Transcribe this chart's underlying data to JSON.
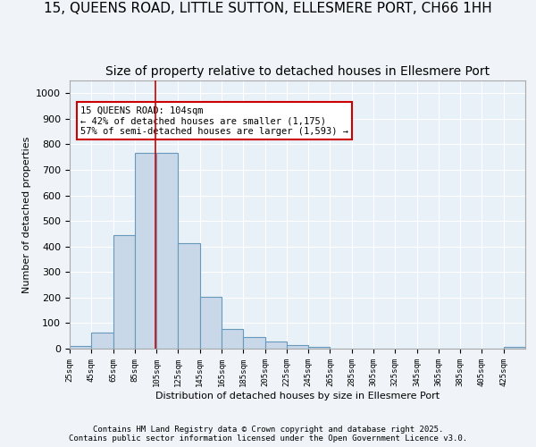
{
  "title": "15, QUEENS ROAD, LITTLE SUTTON, ELLESMERE PORT, CH66 1HH",
  "subtitle": "Size of property relative to detached houses in Ellesmere Port",
  "xlabel": "Distribution of detached houses by size in Ellesmere Port",
  "ylabel": "Number of detached properties",
  "bin_edges": [
    25,
    45,
    65,
    85,
    105,
    125,
    145,
    165,
    185,
    205,
    225,
    245,
    265,
    285,
    305,
    325,
    345,
    365,
    385,
    405,
    425,
    445
  ],
  "bin_values": [
    10,
    62,
    443,
    765,
    765,
    413,
    204,
    78,
    44,
    27,
    13,
    8,
    0,
    0,
    0,
    0,
    0,
    0,
    0,
    0,
    7
  ],
  "bar_color": "#c8d8e8",
  "bar_edgecolor": "#6699bb",
  "vline_x": 104,
  "vline_color": "#cc0000",
  "annotation_text": "15 QUEENS ROAD: 104sqm\n← 42% of detached houses are smaller (1,175)\n57% of semi-detached houses are larger (1,593) →",
  "annotation_box_color": "#ffffff",
  "annotation_box_edgecolor": "#cc0000",
  "ylim": [
    0,
    1050
  ],
  "yticks": [
    0,
    100,
    200,
    300,
    400,
    500,
    600,
    700,
    800,
    900,
    1000
  ],
  "tick_labels": [
    "25sqm",
    "45sqm",
    "65sqm",
    "85sqm",
    "105sqm",
    "125sqm",
    "145sqm",
    "165sqm",
    "185sqm",
    "205sqm",
    "225sqm",
    "245sqm",
    "265sqm",
    "285sqm",
    "305sqm",
    "325sqm",
    "345sqm",
    "365sqm",
    "385sqm",
    "405sqm",
    "425sqm"
  ],
  "bg_color": "#e8f0f8",
  "footer": "Contains HM Land Registry data © Crown copyright and database right 2025.\nContains public sector information licensed under the Open Government Licence v3.0.",
  "title_fontsize": 11,
  "subtitle_fontsize": 10,
  "grid_color": "#ffffff"
}
